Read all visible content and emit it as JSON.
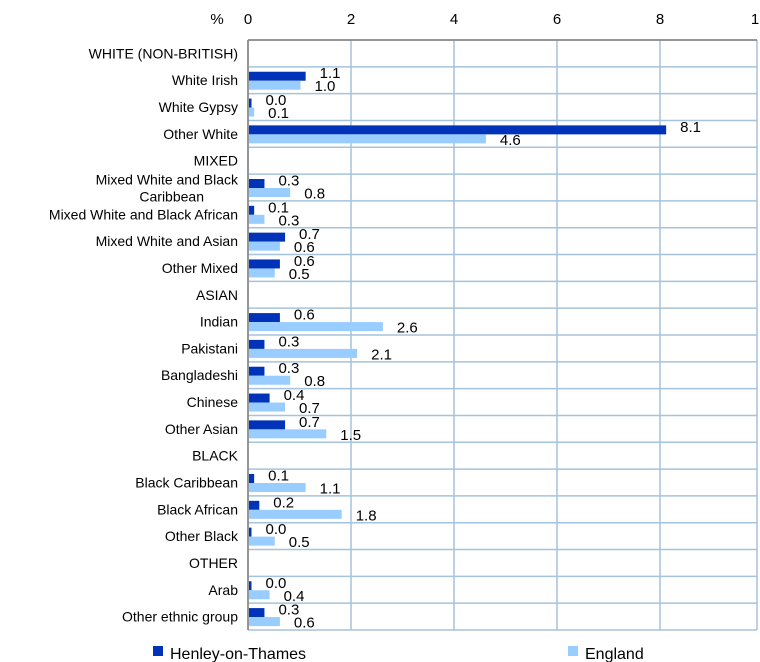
{
  "chart_data": {
    "type": "bar",
    "orientation": "horizontal",
    "unit_label": "%",
    "x_ticks": [
      "0",
      "2",
      "4",
      "6",
      "8",
      "1"
    ],
    "xlim": [
      0,
      10
    ],
    "grid": true,
    "legend_position": "bottom",
    "categories": [
      "WHITE (NON-BRITISH)",
      "White Irish",
      "White Gypsy",
      "Other White",
      "MIXED",
      "Mixed White and Black Caribbean",
      "Mixed White and Black African",
      "Mixed White and Asian",
      "Other Mixed",
      "ASIAN",
      "Indian",
      "Pakistani",
      "Bangladeshi",
      "Chinese",
      "Other Asian",
      "BLACK",
      "Black Caribbean",
      "Black African",
      "Other Black",
      "OTHER",
      "Arab",
      "Other ethnic group"
    ],
    "series": [
      {
        "name": "Henley-on-Thames",
        "color": "#0033b8",
        "values": [
          null,
          1.1,
          0.0,
          8.1,
          null,
          0.3,
          0.1,
          0.7,
          0.6,
          null,
          0.6,
          0.3,
          0.3,
          0.4,
          0.7,
          null,
          0.1,
          0.2,
          0.0,
          null,
          0.0,
          0.3
        ],
        "labels": [
          null,
          "1.1",
          "0.0",
          "8.1",
          null,
          "0.3",
          "0.1",
          "0.7",
          "0.6",
          null,
          "0.6",
          "0.3",
          "0.3",
          "0.4",
          "0.7",
          null,
          "0.1",
          "0.2",
          "0.0",
          null,
          "0.0",
          "0.3"
        ]
      },
      {
        "name": "England",
        "color": "#99ccff",
        "values": [
          null,
          1.0,
          0.1,
          4.6,
          null,
          0.8,
          0.3,
          0.6,
          0.5,
          null,
          2.6,
          2.1,
          0.8,
          0.7,
          1.5,
          null,
          1.1,
          1.8,
          0.5,
          null,
          0.4,
          0.6
        ],
        "labels": [
          null,
          "1.0",
          "0.1",
          "4.6",
          null,
          "0.8",
          "0.3",
          "0.6",
          "0.5",
          null,
          "2.6",
          "2.1",
          "0.8",
          "0.7",
          "1.5",
          null,
          "1.1",
          "1.8",
          "0.5",
          null,
          "0.4",
          "0.6"
        ]
      }
    ]
  }
}
